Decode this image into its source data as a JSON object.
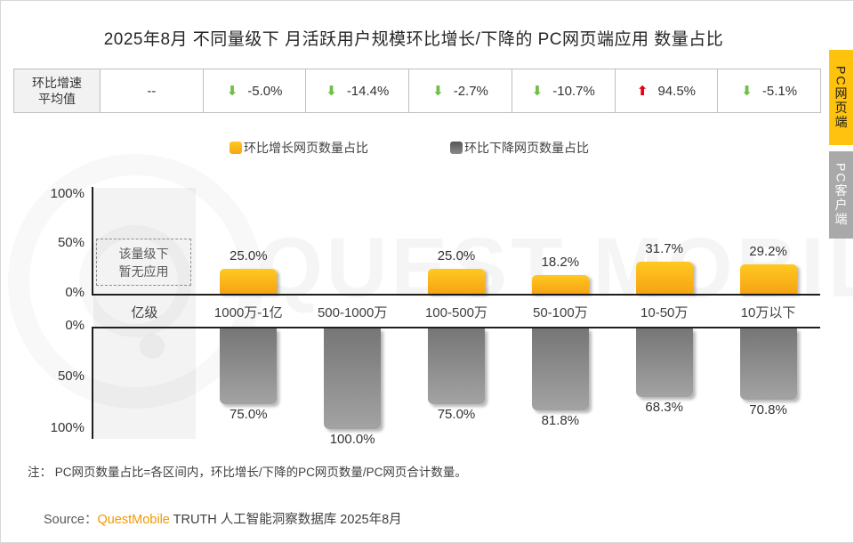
{
  "page": {
    "title": "2025年8月 不同量级下 月活跃用户规模环比增长/下降的 PC网页端应用 数量占比",
    "note": "注： PC网页数量占比=各区间内，环比增长/下降的PC网页数量/PC网页合计数量。",
    "source": {
      "label": "Source：",
      "brand": "QuestMobile",
      "rest": " TRUTH 人工智能洞察数据库 2025年8月"
    }
  },
  "side_tabs": [
    {
      "label": "PC网页端",
      "active": true,
      "color": "#FFC20E"
    },
    {
      "label": "PC客户端",
      "active": false,
      "color": "#A9A9A9"
    }
  ],
  "summary_table": {
    "header_line1": "环比增速",
    "header_line2": "平均值",
    "cells": [
      {
        "value": "--",
        "arrow": "none"
      },
      {
        "value": "-5.0%",
        "arrow": "down"
      },
      {
        "value": "-14.4%",
        "arrow": "down"
      },
      {
        "value": "-2.7%",
        "arrow": "down"
      },
      {
        "value": "-10.7%",
        "arrow": "down"
      },
      {
        "value": "94.5%",
        "arrow": "up"
      },
      {
        "value": "-5.1%",
        "arrow": "down"
      }
    ],
    "arrow_colors": {
      "down": "#6FBE45",
      "up": "#E60012"
    }
  },
  "legend": [
    {
      "label": "环比增长网页数量占比",
      "color": "#FFC20E"
    },
    {
      "label": "环比下降网页数量占比",
      "color": "#6E6E6E"
    }
  ],
  "chart_data": {
    "type": "bar",
    "orientation": "diverging-vertical",
    "title": "2025年8月 不同量级下 月活跃用户规模环比增长/下降的 PC网页端应用 数量占比",
    "categories": [
      "亿级",
      "1000万-1亿",
      "500-1000万",
      "100-500万",
      "50-100万",
      "10-50万",
      "10万以下"
    ],
    "series": [
      {
        "name": "环比增长网页数量占比",
        "direction": "up",
        "color": "#FFC20E",
        "values": [
          null,
          25.0,
          0.0,
          25.0,
          18.2,
          31.7,
          29.2
        ],
        "labels": [
          "",
          "25.0%",
          "",
          "25.0%",
          "18.2%",
          "31.7%",
          "29.2%"
        ]
      },
      {
        "name": "环比下降网页数量占比",
        "direction": "down",
        "color": "#808080",
        "values": [
          null,
          75.0,
          100.0,
          75.0,
          81.8,
          68.3,
          70.8
        ],
        "labels": [
          "",
          "75.0%",
          "100.0%",
          "75.0%",
          "81.8%",
          "68.3%",
          "70.8%"
        ]
      }
    ],
    "y_ticks_top": [
      "100%",
      "50%",
      "0%"
    ],
    "y_ticks_bottom": [
      "0%",
      "50%",
      "100%"
    ],
    "ylim": [
      0,
      100
    ],
    "grid": false,
    "legend_position": "top",
    "no_data": {
      "category": "亿级",
      "line1": "该量级下",
      "line2": "暂无应用"
    }
  },
  "watermark": {
    "text": "QUEST MOBILE"
  }
}
